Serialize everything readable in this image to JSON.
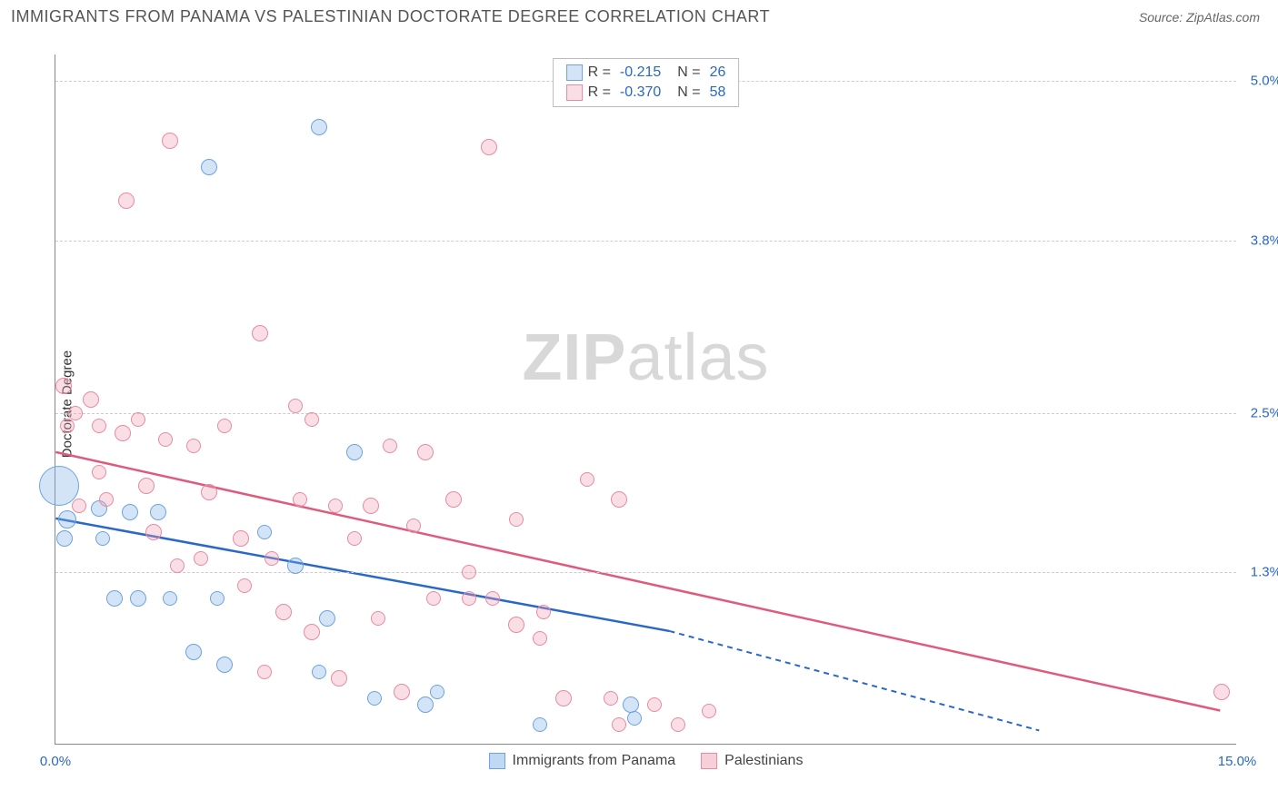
{
  "title": "IMMIGRANTS FROM PANAMA VS PALESTINIAN DOCTORATE DEGREE CORRELATION CHART",
  "source": "Source: ZipAtlas.com",
  "y_axis_label": "Doctorate Degree",
  "watermark_bold": "ZIP",
  "watermark_light": "atlas",
  "chart": {
    "type": "scatter",
    "xlim": [
      0,
      15
    ],
    "ylim": [
      0,
      5.2
    ],
    "x_ticks": [
      {
        "value": 0,
        "label": "0.0%"
      },
      {
        "value": 15,
        "label": "15.0%"
      }
    ],
    "y_ticks": [
      {
        "value": 1.3,
        "label": "1.3%"
      },
      {
        "value": 2.5,
        "label": "2.5%"
      },
      {
        "value": 3.8,
        "label": "3.8%"
      },
      {
        "value": 5.0,
        "label": "5.0%"
      }
    ],
    "background_color": "#ffffff",
    "grid_color": "#cccccc"
  },
  "series": [
    {
      "name": "Immigrants from Panama",
      "color_fill": "rgba(129,177,232,0.35)",
      "color_stroke": "#6da3e0",
      "trend_color": "#2968c8",
      "r_value": "-0.215",
      "n_value": "26",
      "trend": {
        "x1": 0,
        "y1": 1.7,
        "x2_solid": 7.8,
        "y2_solid": 0.85,
        "x2_dash": 12.5,
        "y2_dash": 0.1
      },
      "points": [
        {
          "x": 0.05,
          "y": 1.95,
          "r": 22
        },
        {
          "x": 0.15,
          "y": 1.7,
          "r": 10
        },
        {
          "x": 0.12,
          "y": 1.55,
          "r": 9
        },
        {
          "x": 0.55,
          "y": 1.78,
          "r": 9
        },
        {
          "x": 0.75,
          "y": 1.1,
          "r": 9
        },
        {
          "x": 0.95,
          "y": 1.75,
          "r": 9
        },
        {
          "x": 0.6,
          "y": 1.55,
          "r": 8
        },
        {
          "x": 1.3,
          "y": 1.75,
          "r": 9
        },
        {
          "x": 1.05,
          "y": 1.1,
          "r": 9
        },
        {
          "x": 1.45,
          "y": 1.1,
          "r": 8
        },
        {
          "x": 1.75,
          "y": 0.7,
          "r": 9
        },
        {
          "x": 2.05,
          "y": 1.1,
          "r": 8
        },
        {
          "x": 2.15,
          "y": 0.6,
          "r": 9
        },
        {
          "x": 1.95,
          "y": 4.35,
          "r": 9
        },
        {
          "x": 2.65,
          "y": 1.6,
          "r": 8
        },
        {
          "x": 3.05,
          "y": 1.35,
          "r": 9
        },
        {
          "x": 3.35,
          "y": 4.65,
          "r": 9
        },
        {
          "x": 3.45,
          "y": 0.95,
          "r": 9
        },
        {
          "x": 3.35,
          "y": 0.55,
          "r": 8
        },
        {
          "x": 3.8,
          "y": 2.2,
          "r": 9
        },
        {
          "x": 4.05,
          "y": 0.35,
          "r": 8
        },
        {
          "x": 4.7,
          "y": 0.3,
          "r": 9
        },
        {
          "x": 4.85,
          "y": 0.4,
          "r": 8
        },
        {
          "x": 6.15,
          "y": 0.15,
          "r": 8
        },
        {
          "x": 7.3,
          "y": 0.3,
          "r": 9
        },
        {
          "x": 7.35,
          "y": 0.2,
          "r": 8
        }
      ]
    },
    {
      "name": "Palestinians",
      "color_fill": "rgba(240,160,180,0.35)",
      "color_stroke": "#e88aa2",
      "trend_color": "#e05a7d",
      "r_value": "-0.370",
      "n_value": "58",
      "trend": {
        "x1": 0,
        "y1": 2.2,
        "x2_solid": 14.8,
        "y2_solid": 0.25,
        "x2_dash": 14.8,
        "y2_dash": 0.25
      },
      "points": [
        {
          "x": 0.1,
          "y": 2.7,
          "r": 9
        },
        {
          "x": 0.15,
          "y": 2.4,
          "r": 8
        },
        {
          "x": 0.25,
          "y": 2.5,
          "r": 8
        },
        {
          "x": 0.45,
          "y": 2.6,
          "r": 9
        },
        {
          "x": 0.3,
          "y": 1.8,
          "r": 8
        },
        {
          "x": 0.55,
          "y": 2.4,
          "r": 8
        },
        {
          "x": 0.85,
          "y": 2.35,
          "r": 9
        },
        {
          "x": 0.65,
          "y": 1.85,
          "r": 8
        },
        {
          "x": 0.9,
          "y": 4.1,
          "r": 9
        },
        {
          "x": 0.55,
          "y": 2.05,
          "r": 8
        },
        {
          "x": 1.05,
          "y": 2.45,
          "r": 8
        },
        {
          "x": 1.15,
          "y": 1.95,
          "r": 9
        },
        {
          "x": 1.4,
          "y": 2.3,
          "r": 8
        },
        {
          "x": 1.25,
          "y": 1.6,
          "r": 9
        },
        {
          "x": 1.55,
          "y": 1.35,
          "r": 8
        },
        {
          "x": 1.45,
          "y": 4.55,
          "r": 9
        },
        {
          "x": 1.75,
          "y": 2.25,
          "r": 8
        },
        {
          "x": 1.95,
          "y": 1.9,
          "r": 9
        },
        {
          "x": 1.85,
          "y": 1.4,
          "r": 8
        },
        {
          "x": 2.15,
          "y": 2.4,
          "r": 8
        },
        {
          "x": 2.35,
          "y": 1.55,
          "r": 9
        },
        {
          "x": 2.4,
          "y": 1.2,
          "r": 8
        },
        {
          "x": 2.6,
          "y": 3.1,
          "r": 9
        },
        {
          "x": 2.65,
          "y": 0.55,
          "r": 8
        },
        {
          "x": 2.75,
          "y": 1.4,
          "r": 8
        },
        {
          "x": 2.9,
          "y": 1.0,
          "r": 9
        },
        {
          "x": 3.05,
          "y": 2.55,
          "r": 8
        },
        {
          "x": 3.1,
          "y": 1.85,
          "r": 8
        },
        {
          "x": 3.25,
          "y": 0.85,
          "r": 9
        },
        {
          "x": 3.25,
          "y": 2.45,
          "r": 8
        },
        {
          "x": 3.55,
          "y": 1.8,
          "r": 8
        },
        {
          "x": 3.6,
          "y": 0.5,
          "r": 9
        },
        {
          "x": 3.8,
          "y": 1.55,
          "r": 8
        },
        {
          "x": 4.0,
          "y": 1.8,
          "r": 9
        },
        {
          "x": 4.1,
          "y": 0.95,
          "r": 8
        },
        {
          "x": 4.25,
          "y": 2.25,
          "r": 8
        },
        {
          "x": 4.4,
          "y": 0.4,
          "r": 9
        },
        {
          "x": 4.55,
          "y": 1.65,
          "r": 8
        },
        {
          "x": 4.7,
          "y": 2.2,
          "r": 9
        },
        {
          "x": 4.8,
          "y": 1.1,
          "r": 8
        },
        {
          "x": 5.05,
          "y": 1.85,
          "r": 9
        },
        {
          "x": 5.25,
          "y": 1.1,
          "r": 8
        },
        {
          "x": 5.25,
          "y": 1.3,
          "r": 8
        },
        {
          "x": 5.5,
          "y": 4.5,
          "r": 9
        },
        {
          "x": 5.55,
          "y": 1.1,
          "r": 8
        },
        {
          "x": 5.85,
          "y": 0.9,
          "r": 9
        },
        {
          "x": 5.85,
          "y": 1.7,
          "r": 8
        },
        {
          "x": 6.15,
          "y": 0.8,
          "r": 8
        },
        {
          "x": 6.2,
          "y": 1.0,
          "r": 8
        },
        {
          "x": 6.45,
          "y": 0.35,
          "r": 9
        },
        {
          "x": 6.75,
          "y": 2.0,
          "r": 8
        },
        {
          "x": 7.05,
          "y": 0.35,
          "r": 8
        },
        {
          "x": 7.15,
          "y": 1.85,
          "r": 9
        },
        {
          "x": 7.15,
          "y": 0.15,
          "r": 8
        },
        {
          "x": 7.6,
          "y": 0.3,
          "r": 8
        },
        {
          "x": 7.9,
          "y": 0.15,
          "r": 8
        },
        {
          "x": 8.3,
          "y": 0.25,
          "r": 8
        },
        {
          "x": 14.8,
          "y": 0.4,
          "r": 9
        }
      ]
    }
  ],
  "legend_bottom": [
    {
      "label": "Immigrants from Panama",
      "fill": "rgba(129,177,232,0.5)",
      "stroke": "#6da3e0"
    },
    {
      "label": "Palestinians",
      "fill": "rgba(240,160,180,0.5)",
      "stroke": "#e88aa2"
    }
  ]
}
